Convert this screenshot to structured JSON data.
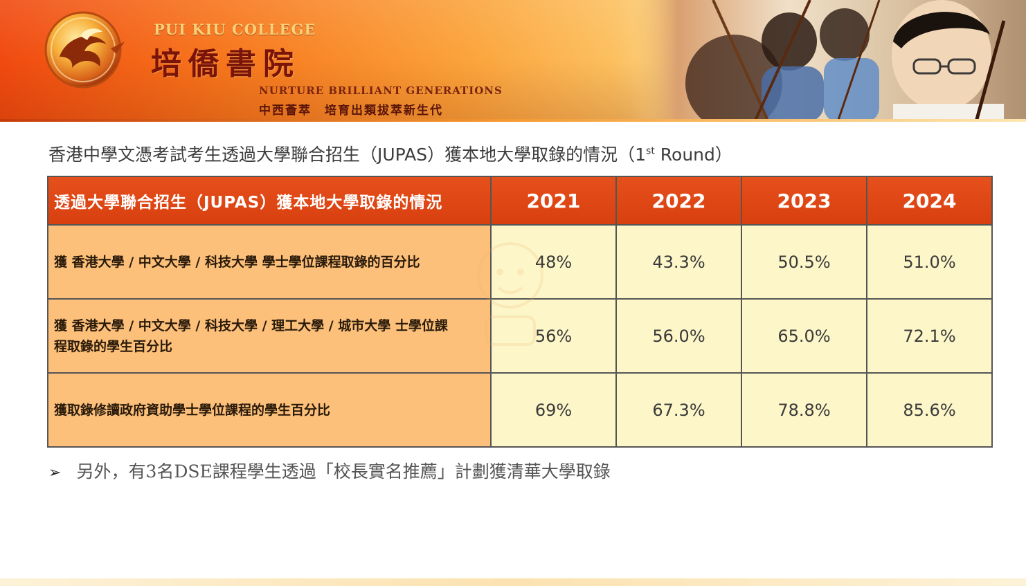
{
  "banner": {
    "college_en": "PUI KIU COLLEGE",
    "college_zh": "培僑書院",
    "motto_en": "NURTURE BRILLIANT GENERATIONS",
    "motto_zh": "中西薈萃　培育出類拔萃新生代"
  },
  "heading": {
    "text": "香港中學文憑考試考生透過大學聯合招生（JUPAS）獲本地大學取錄的情況（1",
    "sup": "st",
    "suffix": " Round）"
  },
  "table": {
    "header_label": "透過大學聯合招生（JUPAS）獲本地大學取錄的情況",
    "years": [
      "2021",
      "2022",
      "2023",
      "2024"
    ],
    "rows": [
      {
        "label": "獲 香港大學 / 中文大學 / 科技大學 學士學位課程取錄的百分比",
        "values": [
          "48%",
          "43.3%",
          "50.5%",
          "51.0%"
        ]
      },
      {
        "label": "獲 香港大學 / 中文大學 / 科技大學 / 理工大學 / 城市大學 士學位課程取錄的學生百分比",
        "values": [
          "56%",
          "56.0%",
          "65.0%",
          "72.1%"
        ]
      },
      {
        "label": "獲取錄修讀政府資助學士學位課程的學生百分比",
        "values": [
          "69%",
          "67.3%",
          "78.8%",
          "85.6%"
        ]
      }
    ]
  },
  "note": {
    "bullet": "➢",
    "text": "另外，有3名DSE課程學生透過「校長實名推薦」計劃獲清華大學取錄"
  },
  "colors": {
    "header_bg": "#d8400f",
    "label_bg": "#fcc07a",
    "cell_bg": "#fdf6c8"
  }
}
